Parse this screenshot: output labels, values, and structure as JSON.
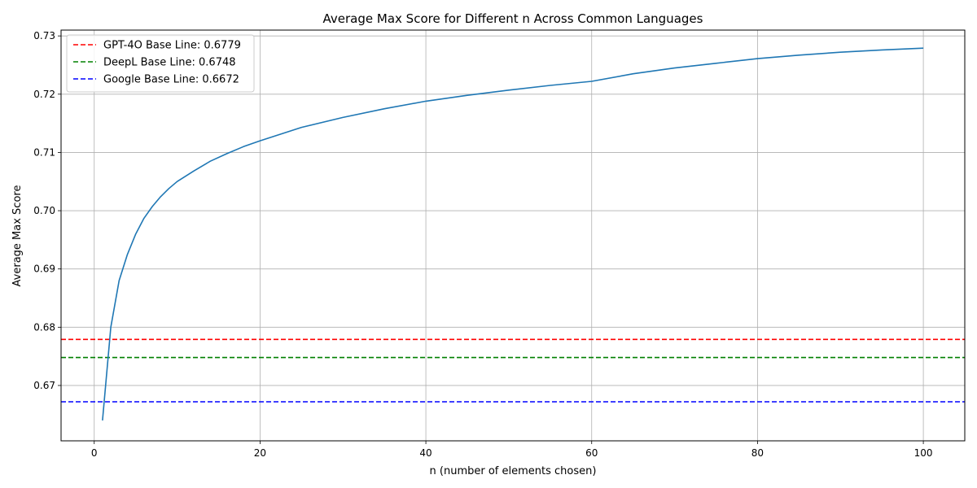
{
  "chart_data": {
    "type": "line",
    "title": "Average Max Score for Different n Across Common Languages",
    "xlabel": "n (number of elements chosen)",
    "ylabel": "Average Max Score",
    "xlim": [
      -4,
      105
    ],
    "ylim": [
      0.6605,
      0.731
    ],
    "x_ticks": [
      0,
      20,
      40,
      60,
      80,
      100
    ],
    "y_ticks": [
      0.67,
      0.68,
      0.69,
      0.7,
      0.71,
      0.72,
      0.73
    ],
    "x_tick_labels": [
      "0",
      "20",
      "40",
      "60",
      "80",
      "100"
    ],
    "y_tick_labels": [
      "0.67",
      "0.68",
      "0.69",
      "0.70",
      "0.71",
      "0.72",
      "0.73"
    ],
    "grid": true,
    "legend_position": "top-left",
    "series": [
      {
        "color": "#1f77b4",
        "style": "solid",
        "x": [
          1,
          2,
          3,
          4,
          5,
          6,
          7,
          8,
          9,
          10,
          12,
          14,
          16,
          18,
          20,
          25,
          30,
          35,
          40,
          45,
          50,
          55,
          60,
          65,
          70,
          75,
          80,
          85,
          90,
          95,
          100
        ],
        "y": [
          0.664,
          0.68,
          0.688,
          0.6925,
          0.696,
          0.6987,
          0.7007,
          0.7024,
          0.7038,
          0.705,
          0.7068,
          0.7085,
          0.7098,
          0.711,
          0.712,
          0.7143,
          0.716,
          0.7175,
          0.7188,
          0.7198,
          0.7207,
          0.7215,
          0.7222,
          0.7235,
          0.7245,
          0.7253,
          0.7261,
          0.7267,
          0.7272,
          0.7276,
          0.7279
        ]
      }
    ],
    "baselines": [
      {
        "name": "GPT-4O Base Line: 0.6779",
        "value": 0.6779,
        "color": "#ff0000"
      },
      {
        "name": "DeepL Base Line: 0.6748",
        "value": 0.6748,
        "color": "#008000"
      },
      {
        "name": "Google Base Line: 0.6672",
        "value": 0.6672,
        "color": "#0000ff"
      }
    ]
  }
}
